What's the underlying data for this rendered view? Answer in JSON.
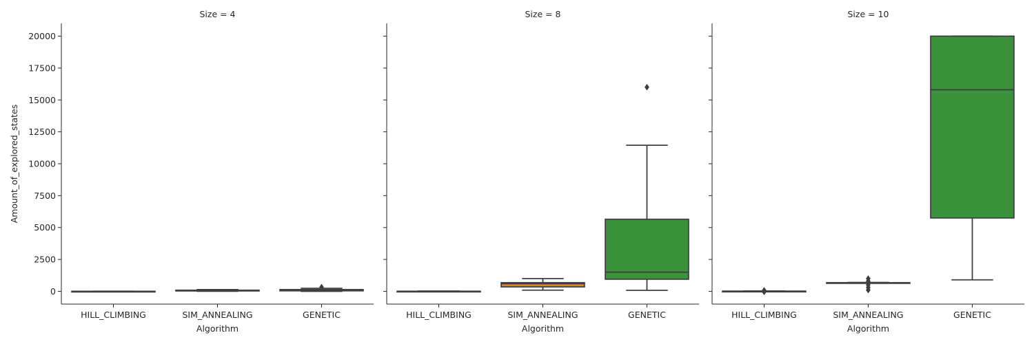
{
  "chart_data": {
    "type": "box",
    "facet_label_prefix": "Size = ",
    "xlabel": "Algorithm",
    "ylabel": "Amount_of_explored_states",
    "categories": [
      "HILL_CLIMBING",
      "SIM_ANNEALING",
      "GENETIC"
    ],
    "ylim": [
      -1000,
      21000
    ],
    "yticks": [
      0,
      2500,
      5000,
      7500,
      10000,
      12500,
      15000,
      17500,
      20000
    ],
    "grid": false,
    "colors": {
      "HILL_CLIMBING": "#3a75af",
      "SIM_ANNEALING": "#e1812b",
      "GENETIC": "#3a923a"
    },
    "panels": [
      {
        "size": "4",
        "boxes": [
          {
            "category": "HILL_CLIMBING",
            "whisker_low": 0,
            "q1": 2,
            "median": 4,
            "q3": 6,
            "whisker_high": 10,
            "outliers": []
          },
          {
            "category": "SIM_ANNEALING",
            "whisker_low": 5,
            "q1": 30,
            "median": 60,
            "q3": 90,
            "whisker_high": 140,
            "outliers": []
          },
          {
            "category": "GENETIC",
            "whisker_low": 0,
            "q1": 40,
            "median": 80,
            "q3": 140,
            "whisker_high": 240,
            "outliers": [
              330
            ]
          }
        ]
      },
      {
        "size": "8",
        "boxes": [
          {
            "category": "HILL_CLIMBING",
            "whisker_low": 0,
            "q1": 3,
            "median": 6,
            "q3": 10,
            "whisker_high": 20,
            "outliers": []
          },
          {
            "category": "SIM_ANNEALING",
            "whisker_low": 90,
            "q1": 350,
            "median": 600,
            "q3": 680,
            "whisker_high": 1000,
            "outliers": []
          },
          {
            "category": "GENETIC",
            "whisker_low": 80,
            "q1": 950,
            "median": 1500,
            "q3": 5650,
            "whisker_high": 11450,
            "outliers": [
              16000
            ]
          }
        ]
      },
      {
        "size": "10",
        "boxes": [
          {
            "category": "HILL_CLIMBING",
            "whisker_low": 0,
            "q1": 5,
            "median": 10,
            "q3": 15,
            "whisker_high": 30,
            "outliers": [
              -40,
              80
            ]
          },
          {
            "category": "SIM_ANNEALING",
            "whisker_low": 640,
            "q1": 650,
            "median": 660,
            "q3": 680,
            "whisker_high": 700,
            "outliers": [
              100,
              300,
              500,
              800,
              1000
            ]
          },
          {
            "category": "GENETIC",
            "whisker_low": 900,
            "q1": 5750,
            "median": 15800,
            "q3": 20000,
            "whisker_high": 20000,
            "outliers": []
          }
        ]
      }
    ]
  }
}
